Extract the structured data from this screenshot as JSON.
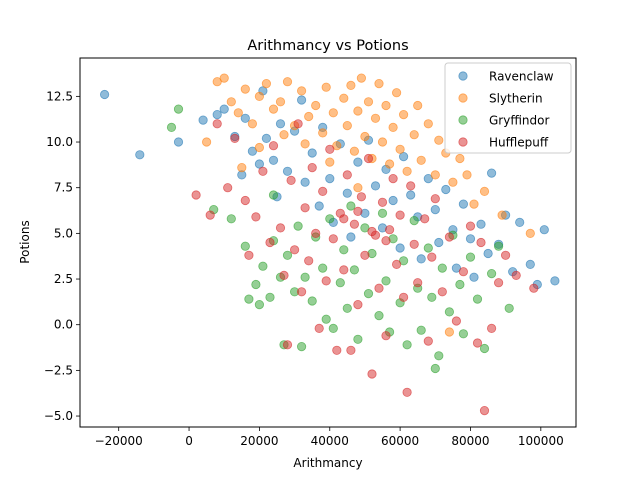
{
  "chart_data": {
    "type": "scatter",
    "title": "Arithmancy vs Potions",
    "xlabel": "Arithmancy",
    "ylabel": "Potions",
    "xlim": [
      -31000,
      110000
    ],
    "ylim": [
      -5.6,
      14.6
    ],
    "xticks": [
      -20000,
      0,
      20000,
      40000,
      60000,
      80000,
      100000
    ],
    "xtick_labels": [
      "−20000",
      "0",
      "20000",
      "40000",
      "60000",
      "80000",
      "100000"
    ],
    "yticks": [
      -5.0,
      -2.5,
      0.0,
      2.5,
      5.0,
      7.5,
      10.0,
      12.5
    ],
    "ytick_labels": [
      "−5.0",
      "−2.5",
      "0.0",
      "2.5",
      "5.0",
      "7.5",
      "10.0",
      "12.5"
    ],
    "grid": false,
    "legend_position": "top-right",
    "series": [
      {
        "name": "Ravenclaw",
        "color": "#1f77b4",
        "points": [
          [
            -24000,
            12.6
          ],
          [
            -14000,
            9.3
          ],
          [
            -3000,
            10.0
          ],
          [
            4000,
            11.2
          ],
          [
            8000,
            11.5
          ],
          [
            10000,
            11.8
          ],
          [
            13000,
            10.3
          ],
          [
            15000,
            8.2
          ],
          [
            16000,
            11.3
          ],
          [
            18000,
            9.5
          ],
          [
            20000,
            8.8
          ],
          [
            21000,
            12.8
          ],
          [
            22000,
            10.2
          ],
          [
            24000,
            9.0
          ],
          [
            25000,
            7.0
          ],
          [
            26000,
            11.0
          ],
          [
            28000,
            8.4
          ],
          [
            30000,
            10.6
          ],
          [
            32000,
            12.3
          ],
          [
            33000,
            7.8
          ],
          [
            35000,
            9.4
          ],
          [
            37000,
            6.5
          ],
          [
            38000,
            10.8
          ],
          [
            40000,
            8.0
          ],
          [
            41000,
            5.6
          ],
          [
            43000,
            9.9
          ],
          [
            45000,
            7.2
          ],
          [
            46000,
            4.8
          ],
          [
            48000,
            8.9
          ],
          [
            50000,
            6.1
          ],
          [
            51000,
            10.1
          ],
          [
            53000,
            7.6
          ],
          [
            55000,
            5.3
          ],
          [
            56000,
            8.5
          ],
          [
            58000,
            6.8
          ],
          [
            60000,
            4.2
          ],
          [
            61000,
            9.2
          ],
          [
            63000,
            7.1
          ],
          [
            65000,
            5.9
          ],
          [
            66000,
            3.6
          ],
          [
            68000,
            8.0
          ],
          [
            70000,
            6.3
          ],
          [
            71000,
            4.5
          ],
          [
            73000,
            7.4
          ],
          [
            75000,
            5.2
          ],
          [
            76000,
            3.1
          ],
          [
            78000,
            6.6
          ],
          [
            80000,
            4.7
          ],
          [
            81000,
            2.6
          ],
          [
            83000,
            5.5
          ],
          [
            85000,
            3.9
          ],
          [
            86000,
            8.3
          ],
          [
            88000,
            4.4
          ],
          [
            90000,
            6.0
          ],
          [
            92000,
            2.9
          ],
          [
            94000,
            5.6
          ],
          [
            97000,
            3.3
          ],
          [
            99000,
            2.2
          ],
          [
            101000,
            5.2
          ],
          [
            104000,
            2.4
          ]
        ]
      },
      {
        "name": "Slytherin",
        "color": "#ff7f0e",
        "points": [
          [
            5000,
            10.0
          ],
          [
            8000,
            13.3
          ],
          [
            10000,
            13.5
          ],
          [
            12000,
            12.2
          ],
          [
            14000,
            11.6
          ],
          [
            16000,
            12.9
          ],
          [
            18000,
            11.0
          ],
          [
            20000,
            12.5
          ],
          [
            22000,
            13.2
          ],
          [
            24000,
            11.8
          ],
          [
            26000,
            12.2
          ],
          [
            28000,
            13.3
          ],
          [
            30000,
            10.9
          ],
          [
            32000,
            12.8
          ],
          [
            34000,
            11.4
          ],
          [
            36000,
            12.0
          ],
          [
            38000,
            10.5
          ],
          [
            39000,
            13.0
          ],
          [
            41000,
            11.6
          ],
          [
            42000,
            9.8
          ],
          [
            44000,
            12.4
          ],
          [
            45000,
            10.9
          ],
          [
            46000,
            13.1
          ],
          [
            47000,
            9.5
          ],
          [
            48000,
            11.7
          ],
          [
            49000,
            13.5
          ],
          [
            50000,
            10.3
          ],
          [
            51000,
            12.2
          ],
          [
            52000,
            9.1
          ],
          [
            53000,
            11.3
          ],
          [
            54000,
            13.2
          ],
          [
            55000,
            10.0
          ],
          [
            56000,
            12.0
          ],
          [
            57000,
            8.8
          ],
          [
            58000,
            10.8
          ],
          [
            59000,
            12.7
          ],
          [
            60000,
            9.6
          ],
          [
            61000,
            11.5
          ],
          [
            62000,
            8.4
          ],
          [
            64000,
            10.4
          ],
          [
            65000,
            12.0
          ],
          [
            66000,
            9.0
          ],
          [
            68000,
            11.0
          ],
          [
            70000,
            8.2
          ],
          [
            71000,
            10.1
          ],
          [
            73000,
            9.4
          ],
          [
            75000,
            7.8
          ],
          [
            77000,
            9.1
          ],
          [
            79000,
            8.2
          ],
          [
            81000,
            6.6
          ],
          [
            84000,
            7.3
          ],
          [
            89000,
            6.0
          ],
          [
            97000,
            5.0
          ],
          [
            74000,
            -0.4
          ],
          [
            48000,
            7.5
          ],
          [
            40000,
            8.9
          ],
          [
            33000,
            9.9
          ],
          [
            27000,
            10.4
          ],
          [
            20000,
            9.7
          ],
          [
            15000,
            8.6
          ]
        ]
      },
      {
        "name": "Gryffindor",
        "color": "#2ca02c",
        "points": [
          [
            -3000,
            11.8
          ],
          [
            -5000,
            10.8
          ],
          [
            7000,
            6.3
          ],
          [
            12000,
            5.8
          ],
          [
            16000,
            4.3
          ],
          [
            17000,
            1.4
          ],
          [
            19000,
            2.2
          ],
          [
            20000,
            1.1
          ],
          [
            21000,
            3.2
          ],
          [
            23000,
            1.5
          ],
          [
            24000,
            4.6
          ],
          [
            26000,
            2.6
          ],
          [
            27000,
            -1.1
          ],
          [
            28000,
            3.8
          ],
          [
            30000,
            1.8
          ],
          [
            31000,
            5.4
          ],
          [
            32000,
            -1.2
          ],
          [
            33000,
            2.6
          ],
          [
            35000,
            1.3
          ],
          [
            36000,
            4.8
          ],
          [
            38000,
            3.1
          ],
          [
            39000,
            0.3
          ],
          [
            40000,
            5.8
          ],
          [
            41000,
            -0.2
          ],
          [
            43000,
            2.3
          ],
          [
            44000,
            4.1
          ],
          [
            45000,
            0.9
          ],
          [
            46000,
            6.5
          ],
          [
            47000,
            3.0
          ],
          [
            48000,
            -0.8
          ],
          [
            50000,
            5.3
          ],
          [
            51000,
            1.7
          ],
          [
            52000,
            3.9
          ],
          [
            54000,
            0.5
          ],
          [
            55000,
            6.1
          ],
          [
            56000,
            2.4
          ],
          [
            57000,
            -0.4
          ],
          [
            58000,
            4.7
          ],
          [
            60000,
            1.2
          ],
          [
            61000,
            3.5
          ],
          [
            62000,
            -1.1
          ],
          [
            64000,
            5.7
          ],
          [
            65000,
            2.0
          ],
          [
            66000,
            -0.3
          ],
          [
            68000,
            4.2
          ],
          [
            69000,
            1.5
          ],
          [
            70000,
            -2.4
          ],
          [
            71000,
            -1.7
          ],
          [
            72000,
            3.1
          ],
          [
            74000,
            0.7
          ],
          [
            75000,
            4.9
          ],
          [
            77000,
            2.2
          ],
          [
            78000,
            -0.5
          ],
          [
            80000,
            3.7
          ],
          [
            82000,
            1.4
          ],
          [
            84000,
            -1.3
          ],
          [
            86000,
            2.8
          ],
          [
            88000,
            4.3
          ],
          [
            91000,
            0.9
          ],
          [
            24000,
            7.1
          ]
        ]
      },
      {
        "name": "Hufflepuff",
        "color": "#d62728",
        "points": [
          [
            2000,
            7.1
          ],
          [
            6000,
            6.0
          ],
          [
            8000,
            11.0
          ],
          [
            11000,
            7.5
          ],
          [
            13000,
            10.2
          ],
          [
            16000,
            6.8
          ],
          [
            17000,
            3.8
          ],
          [
            19000,
            5.9
          ],
          [
            21000,
            8.4
          ],
          [
            23000,
            4.5
          ],
          [
            24000,
            9.8
          ],
          [
            26000,
            5.3
          ],
          [
            27000,
            2.7
          ],
          [
            28000,
            -1.1
          ],
          [
            29000,
            7.9
          ],
          [
            30000,
            4.1
          ],
          [
            31000,
            11.0
          ],
          [
            32000,
            1.8
          ],
          [
            33000,
            6.4
          ],
          [
            34000,
            3.5
          ],
          [
            35000,
            8.6
          ],
          [
            36000,
            5.0
          ],
          [
            37000,
            -0.2
          ],
          [
            38000,
            7.3
          ],
          [
            39000,
            2.4
          ],
          [
            40000,
            9.6
          ],
          [
            41000,
            4.7
          ],
          [
            42000,
            -1.4
          ],
          [
            43000,
            6.1
          ],
          [
            44000,
            3.0
          ],
          [
            45000,
            8.2
          ],
          [
            46000,
            -1.4
          ],
          [
            47000,
            5.5
          ],
          [
            48000,
            1.1
          ],
          [
            49000,
            7.0
          ],
          [
            50000,
            3.8
          ],
          [
            51000,
            9.1
          ],
          [
            52000,
            -2.7
          ],
          [
            53000,
            4.9
          ],
          [
            54000,
            2.0
          ],
          [
            55000,
            6.7
          ],
          [
            56000,
            -0.6
          ],
          [
            57000,
            5.2
          ],
          [
            58000,
            8.0
          ],
          [
            59000,
            3.3
          ],
          [
            60000,
            6.0
          ],
          [
            61000,
            1.5
          ],
          [
            62000,
            -3.7
          ],
          [
            63000,
            7.6
          ],
          [
            64000,
            4.4
          ],
          [
            65000,
            2.3
          ],
          [
            67000,
            5.8
          ],
          [
            68000,
            -0.9
          ],
          [
            69000,
            3.7
          ],
          [
            70000,
            6.9
          ],
          [
            72000,
            1.8
          ],
          [
            74000,
            4.8
          ],
          [
            76000,
            0.2
          ],
          [
            78000,
            2.9
          ],
          [
            80000,
            5.4
          ],
          [
            82000,
            -1.0
          ],
          [
            83000,
            4.5
          ],
          [
            84000,
            -4.7
          ],
          [
            86000,
            -0.2
          ],
          [
            88000,
            2.3
          ],
          [
            90000,
            3.8
          ],
          [
            93000,
            2.7
          ],
          [
            98000,
            2.0
          ],
          [
            44000,
            5.8
          ],
          [
            52000,
            5.1
          ],
          [
            48000,
            6.2
          ],
          [
            56000,
            4.6
          ]
        ]
      }
    ]
  }
}
